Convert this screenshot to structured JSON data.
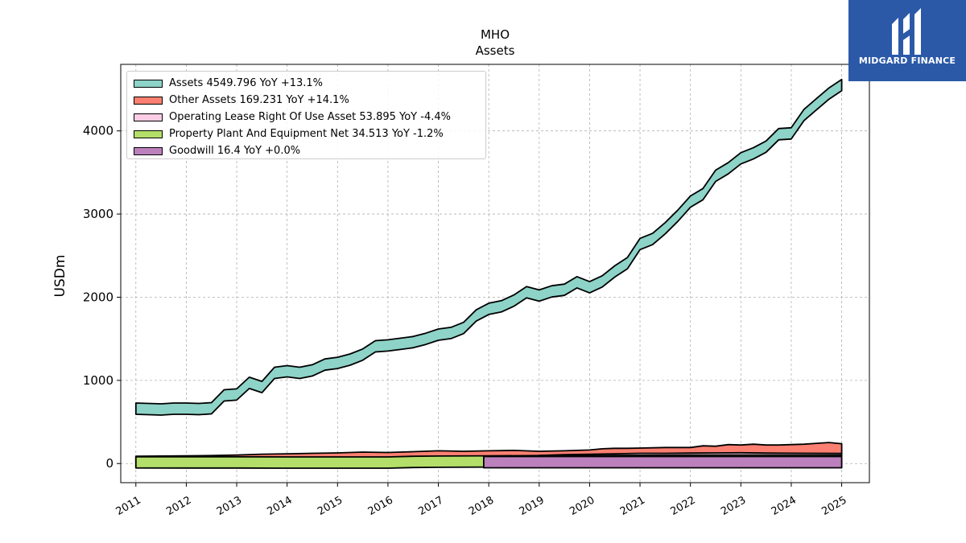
{
  "brand": {
    "name": "MIDGARD FINANCE"
  },
  "chart_data": {
    "type": "area",
    "title": "MHO",
    "subtitle": "Assets",
    "ylabel": "USDm",
    "xlabel": "",
    "x_ticks": [
      "2011",
      "2012",
      "2013",
      "2014",
      "2015",
      "2016",
      "2017",
      "2018",
      "2019",
      "2020",
      "2021",
      "2022",
      "2023",
      "2024",
      "2025"
    ],
    "y_ticks": [
      0,
      1000,
      2000,
      3000,
      4000
    ],
    "xlim": [
      2010.7,
      2025.55
    ],
    "ylim": [
      -230,
      4800
    ],
    "grid": true,
    "legend_position": "top-left",
    "series": [
      {
        "name": "Assets  4549.796 YoY +13.1%",
        "color": "#8dd3c7",
        "x": [
          2011.0,
          2011.25,
          2011.5,
          2011.75,
          2012.0,
          2012.25,
          2012.5,
          2012.75,
          2013.0,
          2013.25,
          2013.5,
          2013.75,
          2014.0,
          2014.25,
          2014.5,
          2014.75,
          2015.0,
          2015.25,
          2015.5,
          2015.75,
          2016.0,
          2016.25,
          2016.5,
          2016.75,
          2017.0,
          2017.25,
          2017.5,
          2017.75,
          2018.0,
          2018.25,
          2018.5,
          2018.75,
          2019.0,
          2019.25,
          2019.5,
          2019.75,
          2020.0,
          2020.25,
          2020.5,
          2020.75,
          2021.0,
          2021.25,
          2021.5,
          2021.75,
          2022.0,
          2022.25,
          2022.5,
          2022.75,
          2023.0,
          2023.25,
          2023.5,
          2023.75,
          2024.0,
          2024.25,
          2024.5,
          2024.75,
          2025.0
        ],
        "values": [
          660,
          655,
          650,
          660,
          660,
          655,
          665,
          820,
          830,
          970,
          920,
          1090,
          1110,
          1090,
          1120,
          1190,
          1210,
          1250,
          1310,
          1410,
          1420,
          1440,
          1460,
          1500,
          1550,
          1570,
          1630,
          1780,
          1860,
          1890,
          1960,
          2060,
          2020,
          2070,
          2090,
          2180,
          2120,
          2190,
          2310,
          2410,
          2640,
          2700,
          2830,
          2980,
          3150,
          3240,
          3460,
          3550,
          3670,
          3730,
          3810,
          3960,
          3970,
          4190,
          4320,
          4450,
          4550
        ]
      },
      {
        "name": "Other Assets  169.231 YoY +14.1%",
        "color": "#fb8072",
        "x": [
          2011.0,
          2011.5,
          2012.0,
          2012.5,
          2013.0,
          2013.5,
          2014.0,
          2014.5,
          2015.0,
          2015.5,
          2016.0,
          2016.5,
          2017.0,
          2017.5,
          2018.0,
          2018.5,
          2019.0,
          2019.5,
          2020.0,
          2020.25,
          2020.5,
          2020.75,
          2021.0,
          2021.5,
          2022.0,
          2022.25,
          2022.5,
          2022.75,
          2023.0,
          2023.25,
          2023.5,
          2023.75,
          2024.0,
          2024.25,
          2024.5,
          2024.75,
          2025.0
        ],
        "values": [
          20,
          22,
          25,
          28,
          35,
          45,
          50,
          55,
          60,
          70,
          65,
          75,
          85,
          80,
          85,
          90,
          80,
          85,
          95,
          110,
          115,
          115,
          118,
          125,
          125,
          145,
          140,
          160,
          155,
          165,
          155,
          155,
          160,
          165,
          175,
          185,
          170
        ]
      },
      {
        "name": "Operating Lease Right Of Use Asset  53.895 YoY -4.4%",
        "color": "#fccde5",
        "x": [
          2019.0,
          2019.25,
          2019.5,
          2019.75,
          2020.0,
          2020.5,
          2021.0,
          2021.5,
          2022.0,
          2022.5,
          2023.0,
          2023.5,
          2024.0,
          2024.5,
          2025.0
        ],
        "values": [
          30,
          35,
          40,
          42,
          45,
          50,
          55,
          55,
          58,
          60,
          62,
          58,
          56,
          55,
          54
        ]
      },
      {
        "name": "Property Plant And Equipment Net  34.513 YoY -1.2%",
        "color": "#b3de69",
        "x": [
          2011.0,
          2012.0,
          2013.0,
          2014.0,
          2015.0,
          2016.0,
          2016.5,
          2017.0,
          2018.0,
          2019.0,
          2020.0,
          2021.0,
          2022.0,
          2023.0,
          2024.0,
          2025.0
        ],
        "values": [
          15,
          14,
          14,
          12,
          12,
          12,
          20,
          22,
          25,
          28,
          30,
          32,
          34,
          35,
          35,
          34.5
        ]
      },
      {
        "name": "Goodwill  16.4 YoY +0.0%",
        "color": "#bc80bd",
        "x": [
          2017.9,
          2018.25,
          2018.5,
          2019.0,
          2019.5,
          2020.0,
          2020.5,
          2021.0,
          2021.5,
          2022.0,
          2022.5,
          2023.0,
          2023.5,
          2024.0,
          2024.5,
          2025.0
        ],
        "values": [
          16.4,
          16.4,
          16.4,
          16.4,
          16.4,
          16.4,
          16.4,
          16.4,
          16.4,
          16.4,
          16.4,
          16.4,
          16.4,
          16.4,
          16.4,
          16.4
        ]
      }
    ]
  }
}
